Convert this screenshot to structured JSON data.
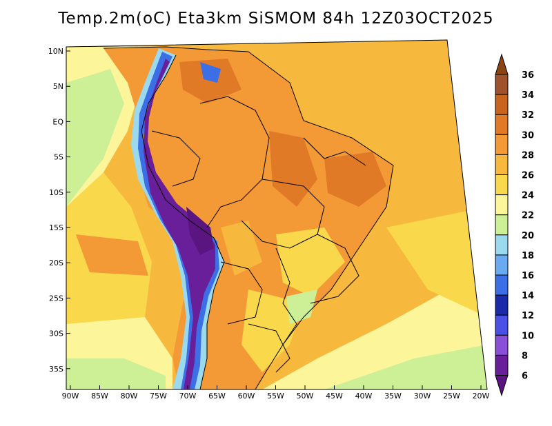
{
  "title": "Temp.2m(oC) Eta3km SiSMOM 84h 12Z03OCT2025",
  "map": {
    "lat_labels": [
      "10N",
      "5N",
      "EQ",
      "5S",
      "10S",
      "15S",
      "20S",
      "25S",
      "30S",
      "35S"
    ],
    "lon_labels": [
      "90W",
      "85W",
      "80W",
      "75W",
      "70W",
      "65W",
      "60W",
      "55W",
      "50W",
      "45W",
      "40W",
      "35W",
      "30W",
      "25W",
      "20W"
    ]
  },
  "colorbar": {
    "labels": [
      "36",
      "34",
      "32",
      "30",
      "28",
      "26",
      "24",
      "22",
      "20",
      "18",
      "16",
      "14",
      "12",
      "10",
      "8",
      "6"
    ],
    "colors": [
      "#8b4513",
      "#a0522d",
      "#c8641e",
      "#e07a26",
      "#f39a36",
      "#f7b83e",
      "#f9d84c",
      "#fdf59a",
      "#cdef96",
      "#9bd9ef",
      "#6aaaf0",
      "#3c6fe6",
      "#1a2aa8",
      "#4b50e6",
      "#8a4fd8",
      "#6a1f9a",
      "#5a1580"
    ]
  },
  "colors": {
    "ocean_warm": "#f7b83e",
    "ocean_mild": "#f9d84c",
    "ocean_cool": "#fdf59a",
    "land_hot": "#f39a36",
    "land_very_hot": "#e07a26",
    "andes_cold": "#6a1f9a",
    "andes_mid": "#3c6fe6",
    "andes_edge": "#9bd9ef"
  }
}
